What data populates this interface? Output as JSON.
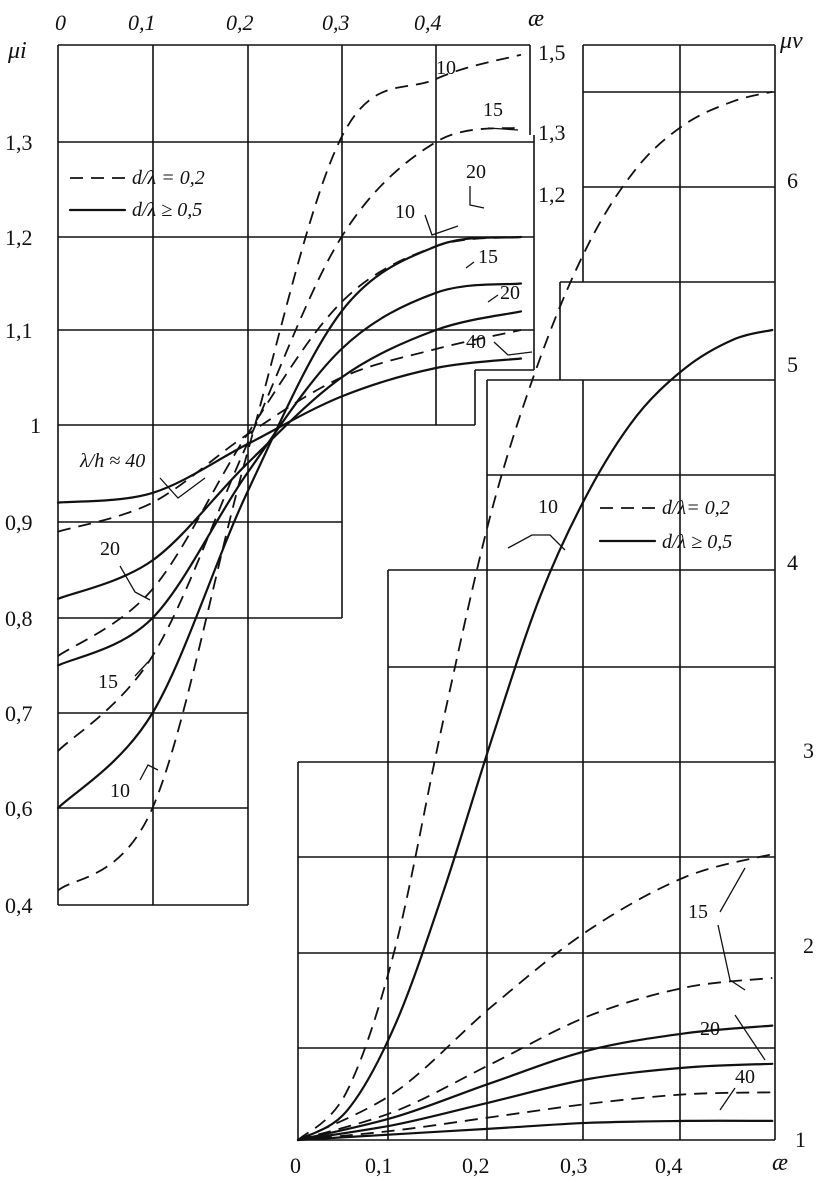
{
  "chart_data": [
    {
      "type": "line",
      "panel": "upper-left",
      "title": "",
      "xlabel": "æ",
      "ylabel": "μi",
      "xlim": [
        0,
        0.5
      ],
      "x_ticks": [
        "0",
        "0,1",
        "0,2",
        "0,3",
        "0,4"
      ],
      "y_ticks_left": [
        "1,3",
        "1,2",
        "1,1",
        "1",
        "0,9",
        "0,8",
        "0,7",
        "0,6",
        "0,4"
      ],
      "y_ticks_right": [
        "1,5",
        "1,3",
        "1,2"
      ],
      "grid": true,
      "legend": {
        "position": "top-left",
        "entries": [
          {
            "style": "dashed",
            "label": "d/λ = 0,2"
          },
          {
            "style": "solid",
            "label": "d/λ ≥ 0,5"
          }
        ]
      },
      "annotation": "λ/h ≈ 40",
      "curve_labels": [
        "10",
        "15",
        "20",
        "10",
        "15",
        "20",
        "40",
        "40",
        "20",
        "15",
        "10"
      ],
      "series": [
        {
          "param": "10",
          "style": "dashed",
          "x": [
            0,
            0.1,
            0.2,
            0.3,
            0.4,
            0.49
          ],
          "y": [
            0.43,
            0.6,
            0.97,
            1.31,
            1.43,
            1.48
          ]
        },
        {
          "param": "15",
          "style": "dashed",
          "x": [
            0,
            0.1,
            0.2,
            0.3,
            0.4,
            0.49
          ],
          "y": [
            0.66,
            0.76,
            0.98,
            1.2,
            1.3,
            1.33
          ]
        },
        {
          "param": "20",
          "style": "dashed",
          "x": [
            0,
            0.1,
            0.2,
            0.3,
            0.4,
            0.49
          ],
          "y": [
            0.76,
            0.83,
            0.99,
            1.13,
            1.19,
            1.2
          ]
        },
        {
          "param": "40",
          "style": "dashed",
          "x": [
            0,
            0.1,
            0.2,
            0.3,
            0.4,
            0.49
          ],
          "y": [
            0.89,
            0.92,
            0.99,
            1.05,
            1.08,
            1.1
          ]
        },
        {
          "param": "10",
          "style": "solid",
          "x": [
            0,
            0.1,
            0.2,
            0.3,
            0.4,
            0.49
          ],
          "y": [
            0.6,
            0.7,
            0.93,
            1.12,
            1.19,
            1.2
          ]
        },
        {
          "param": "15",
          "style": "solid",
          "x": [
            0,
            0.1,
            0.2,
            0.3,
            0.4,
            0.49
          ],
          "y": [
            0.75,
            0.8,
            0.95,
            1.08,
            1.14,
            1.15
          ]
        },
        {
          "param": "20",
          "style": "solid",
          "x": [
            0,
            0.1,
            0.2,
            0.3,
            0.4,
            0.49
          ],
          "y": [
            0.82,
            0.86,
            0.96,
            1.05,
            1.1,
            1.12
          ]
        },
        {
          "param": "40",
          "style": "solid",
          "x": [
            0,
            0.1,
            0.2,
            0.3,
            0.4,
            0.49
          ],
          "y": [
            0.92,
            0.93,
            0.98,
            1.03,
            1.06,
            1.07
          ]
        }
      ]
    },
    {
      "type": "line",
      "panel": "lower-right",
      "title": "",
      "xlabel": "æ",
      "ylabel": "μv",
      "xlim": [
        0,
        0.5
      ],
      "ylim": [
        1,
        6.5
      ],
      "x_ticks": [
        "0",
        "0,1",
        "0,2",
        "0,3",
        "0,4"
      ],
      "y_ticks": [
        "6",
        "5",
        "4",
        "3",
        "2",
        "1"
      ],
      "grid": true,
      "legend": {
        "position": "middle-right",
        "entries": [
          {
            "style": "dashed",
            "label": "d/λ= 0,2"
          },
          {
            "style": "solid",
            "label": "d/λ ≥ 0,5"
          }
        ]
      },
      "curve_labels": [
        "10",
        "15",
        "20",
        "40"
      ],
      "series": [
        {
          "param": "10",
          "style": "dashed",
          "x": [
            0,
            0.05,
            0.1,
            0.15,
            0.2,
            0.25,
            0.3,
            0.35,
            0.4,
            0.45,
            0.49
          ],
          "y": [
            1,
            1.25,
            2.0,
            3.2,
            4.3,
            5.1,
            5.7,
            6.1,
            6.33,
            6.45,
            6.5
          ]
        },
        {
          "param": "10",
          "style": "solid",
          "x": [
            0,
            0.05,
            0.1,
            0.15,
            0.2,
            0.25,
            0.3,
            0.35,
            0.4,
            0.45,
            0.49
          ],
          "y": [
            1,
            1.15,
            1.6,
            2.3,
            3.1,
            3.85,
            4.4,
            4.8,
            5.05,
            5.2,
            5.25
          ]
        },
        {
          "param": "15",
          "style": "dashed",
          "x": [
            0,
            0.1,
            0.2,
            0.3,
            0.4,
            0.49
          ],
          "y": [
            1,
            1.25,
            1.7,
            2.1,
            2.38,
            2.5
          ]
        },
        {
          "param": "15",
          "style": "solid",
          "x": [
            0,
            0.1,
            0.2,
            0.3,
            0.4,
            0.49
          ],
          "y": [
            1,
            1.12,
            1.3,
            1.47,
            1.56,
            1.6
          ]
        },
        {
          "param": "20",
          "style": "dashed",
          "x": [
            0,
            0.1,
            0.2,
            0.3,
            0.4,
            0.49
          ],
          "y": [
            1,
            1.15,
            1.4,
            1.65,
            1.8,
            1.85
          ]
        },
        {
          "param": "20",
          "style": "solid",
          "x": [
            0,
            0.1,
            0.2,
            0.3,
            0.4,
            0.49
          ],
          "y": [
            1,
            1.08,
            1.2,
            1.32,
            1.38,
            1.4
          ]
        },
        {
          "param": "40",
          "style": "dashed",
          "x": [
            0,
            0.1,
            0.2,
            0.3,
            0.4,
            0.49
          ],
          "y": [
            1,
            1.05,
            1.12,
            1.19,
            1.24,
            1.25
          ]
        },
        {
          "param": "40",
          "style": "solid",
          "x": [
            0,
            0.1,
            0.2,
            0.3,
            0.4,
            0.49
          ],
          "y": [
            1,
            1.03,
            1.06,
            1.09,
            1.1,
            1.1
          ]
        }
      ]
    }
  ]
}
